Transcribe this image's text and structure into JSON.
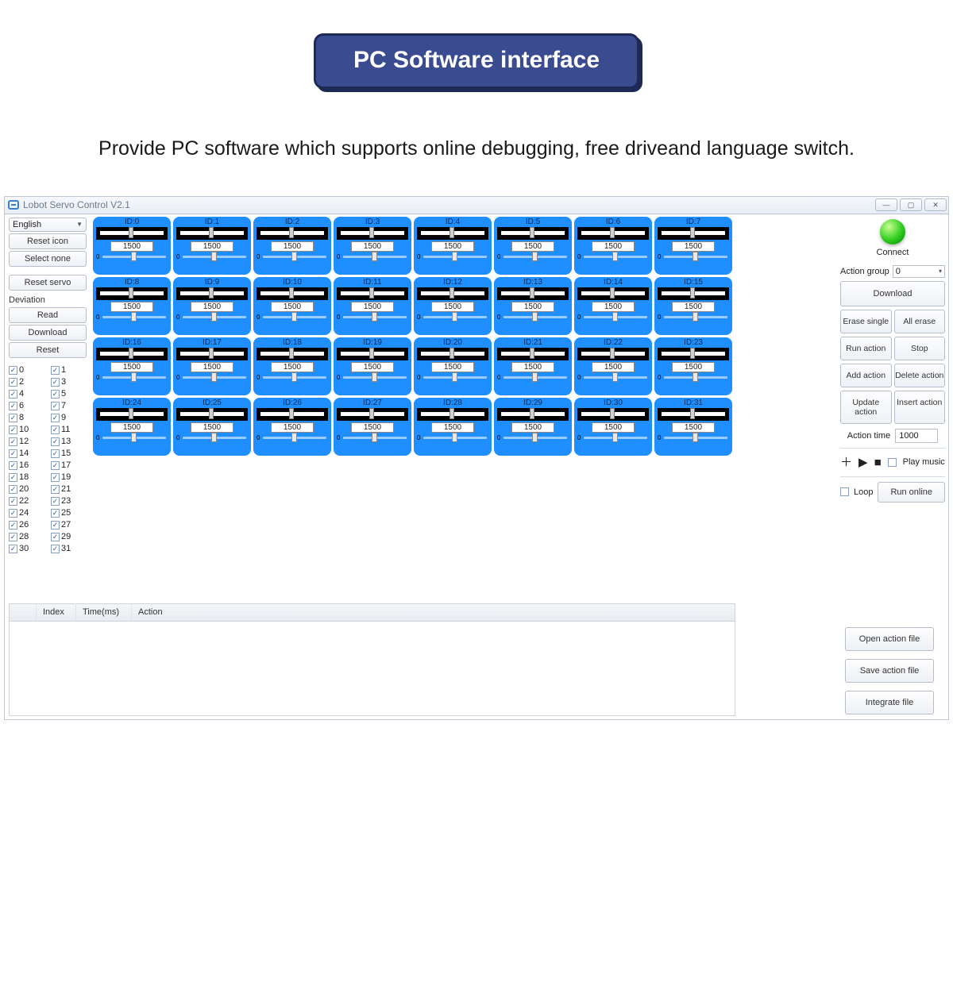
{
  "page": {
    "title": "PC Software interface",
    "subtitle": "Provide PC software which supports online debugging, free driveand language switch."
  },
  "colors": {
    "servo_bg": "#1f8fff",
    "pill_bg": "#3a4b8f",
    "pill_border": "#1e2a53",
    "connect_green": "#2ecc1f"
  },
  "window": {
    "title": "Lobot Servo Control V2.1",
    "min_label": "—",
    "max_label": "▢",
    "close_label": "✕"
  },
  "left": {
    "language": "English",
    "reset_icon": "Reset icon",
    "select_none": "Select none",
    "reset_servo": "Reset servo",
    "deviation_label": "Deviation",
    "read": "Read",
    "download": "Download",
    "reset": "Reset",
    "check_count": 32
  },
  "servo": {
    "count": 32,
    "default_value": 1500,
    "id_prefix": "ID:",
    "mini_zero": "0"
  },
  "right": {
    "connect": "Connect",
    "action_group_label": "Action group",
    "action_group_value": "0",
    "download": "Download",
    "erase_single": "Erase single",
    "all_erase": "All erase",
    "run_action": "Run action",
    "stop": "Stop",
    "add_action": "Add action",
    "delete_action": "Delete action",
    "update_action": "Update action",
    "insert_action": "Insert action",
    "action_time_label": "Action time",
    "action_time_value": "1000",
    "play_music": "Play music",
    "loop": "Loop",
    "run_online": "Run online",
    "open_file": "Open action file",
    "save_file": "Save action file",
    "integrate_file": "Integrate file"
  },
  "table": {
    "col_index": "Index",
    "col_time": "Time(ms)",
    "col_action": "Action"
  }
}
